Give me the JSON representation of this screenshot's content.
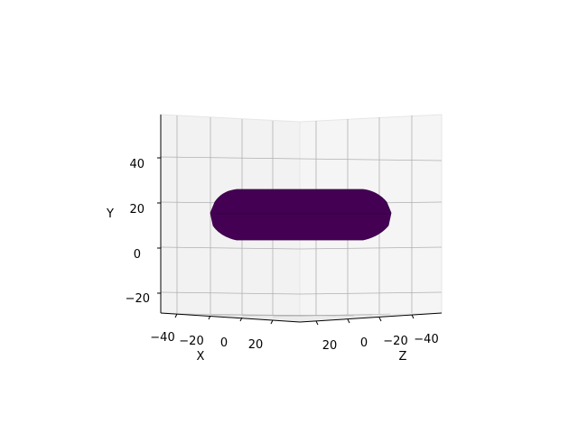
{
  "chart_data": {
    "type": "surface",
    "title": "",
    "projection": "3d",
    "view": "nearly side-on; Y axis vertical",
    "grid": true,
    "pane_color": "#f2f2f2",
    "grid_color": "#b0b0b0",
    "surface_color": "#440154",
    "axes": {
      "x": {
        "label": "X",
        "ticks": [
          "−40",
          "−20",
          "0",
          "20"
        ],
        "range": [
          -45,
          35
        ]
      },
      "z": {
        "label": "Z",
        "ticks": [
          "20",
          "0",
          "−20",
          "−40"
        ],
        "range": [
          -45,
          35
        ]
      },
      "y": {
        "label": "Y",
        "ticks": [
          "−20",
          "0",
          "20",
          "40"
        ],
        "range": [
          -30,
          58
        ]
      }
    },
    "surface": {
      "shape": "capsule-like closed surface (flattened cylinder with rounded ends)",
      "y_range": [
        7,
        26
      ]
    }
  }
}
